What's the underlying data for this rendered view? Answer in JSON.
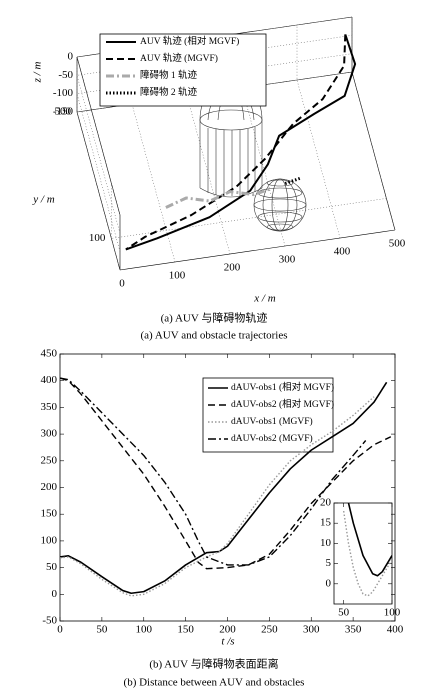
{
  "chart_data": [
    {
      "type": "line3d",
      "xlabel": "x / m",
      "ylabel": "y / m",
      "zlabel": "z / m",
      "caption": "(a) AUV 与障碍物轨迹",
      "caption_en": "(a) AUV and obstacle trajectories",
      "xlim": [
        0,
        500
      ],
      "ylim": [
        0,
        500
      ],
      "zlim": [
        -150,
        0
      ],
      "xticks": [
        0,
        100,
        200,
        300,
        400,
        500
      ],
      "yticks": [
        100,
        500
      ],
      "zticks": [
        0,
        -50,
        -100,
        -150
      ],
      "grid": true,
      "series": [
        {
          "name": "AUV 轨迹 (相对 MGVF)",
          "color": "#000000",
          "linestyle": "solid",
          "linewidth": 2,
          "x": [
            480,
            490,
            460,
            400,
            330,
            300,
            260,
            180,
            80,
            20
          ],
          "y": [
            450,
            400,
            330,
            300,
            260,
            200,
            150,
            110,
            80,
            60
          ],
          "z": [
            0,
            -40,
            -60,
            -70,
            -80,
            -100,
            -120,
            -140,
            -150,
            -150
          ]
        },
        {
          "name": "AUV 轨迹 (MGVF)",
          "color": "#000000",
          "linestyle": "dashed",
          "linewidth": 2,
          "x": [
            480,
            470,
            420,
            360,
            300,
            240,
            150,
            60,
            20
          ],
          "y": [
            450,
            400,
            330,
            290,
            230,
            180,
            130,
            90,
            60
          ],
          "z": [
            0,
            -40,
            -60,
            -80,
            -110,
            -130,
            -145,
            -150,
            -150
          ]
        },
        {
          "name": "障碍物 1 轨迹",
          "color": "#aaaaaa",
          "linestyle": "dashdot",
          "linewidth": 3,
          "x": [
            110,
            150,
            190,
            230,
            270,
            300
          ],
          "y": [
            170,
            190,
            170,
            190,
            170,
            180
          ],
          "z": [
            -150,
            -150,
            -150,
            -150,
            -150,
            -150
          ]
        },
        {
          "name": "障碍物 2 轨迹",
          "color": "#000000",
          "linestyle": "dotted",
          "linewidth": 3,
          "x": [
            330,
            360
          ],
          "y": [
            190,
            200
          ],
          "z": [
            -150,
            -150
          ]
        }
      ]
    },
    {
      "type": "line",
      "xlabel": "t /s",
      "caption": "(b) AUV 与障碍物表面距离",
      "caption_en": "(b) Distance between AUV and obstacles",
      "xlim": [
        0,
        400
      ],
      "ylim": [
        -50,
        450
      ],
      "xticks": [
        0,
        50,
        100,
        150,
        200,
        250,
        300,
        350,
        400
      ],
      "yticks": [
        -50,
        0,
        50,
        100,
        150,
        200,
        250,
        300,
        350,
        400,
        450
      ],
      "series": [
        {
          "name": "dAUV-obs1 (相对 MGVF)",
          "color": "#000000",
          "linestyle": "solid",
          "linewidth": 1.6,
          "x": [
            0,
            10,
            25,
            50,
            75,
            85,
            100,
            125,
            150,
            175,
            190,
            200,
            225,
            250,
            275,
            300,
            325,
            350,
            375,
            390
          ],
          "values": [
            70,
            72,
            60,
            33,
            7,
            2,
            5,
            25,
            55,
            78,
            80,
            90,
            140,
            190,
            235,
            270,
            295,
            320,
            360,
            397
          ]
        },
        {
          "name": "dAUV-obs2 (相对 MGVF)",
          "color": "#000000",
          "linestyle": "dashed",
          "linewidth": 1.4,
          "x": [
            0,
            10,
            25,
            50,
            75,
            100,
            125,
            150,
            165,
            175,
            200,
            225,
            250,
            275,
            300,
            325,
            350,
            375,
            395
          ],
          "values": [
            405,
            400,
            375,
            325,
            275,
            225,
            165,
            100,
            60,
            48,
            50,
            55,
            75,
            120,
            170,
            210,
            250,
            280,
            295
          ]
        },
        {
          "name": "dAUV-obs1 (MGVF)",
          "color": "#999999",
          "linestyle": "dotted",
          "linewidth": 1.4,
          "x": [
            0,
            10,
            25,
            50,
            75,
            85,
            100,
            125,
            150,
            175,
            190,
            200,
            225,
            250,
            275,
            300,
            325,
            350,
            375
          ],
          "values": [
            68,
            70,
            57,
            28,
            3,
            -3,
            0,
            20,
            50,
            70,
            80,
            95,
            150,
            205,
            250,
            280,
            305,
            335,
            370
          ]
        },
        {
          "name": "dAUV-obs2 (MGVF)",
          "color": "#000000",
          "linestyle": "dashdot",
          "linewidth": 1.4,
          "x": [
            0,
            10,
            25,
            50,
            75,
            100,
            125,
            150,
            165,
            175,
            200,
            225,
            250,
            275,
            300,
            325,
            350,
            365
          ],
          "values": [
            405,
            402,
            380,
            340,
            300,
            260,
            210,
            150,
            100,
            70,
            55,
            55,
            70,
            110,
            160,
            215,
            260,
            288
          ]
        }
      ]
    },
    {
      "type": "line",
      "xlim": [
        40,
        100
      ],
      "ylim": [
        -5,
        20
      ],
      "xticks": [
        50,
        100
      ],
      "yticks": [
        0,
        5,
        10,
        15,
        20
      ],
      "series": [
        {
          "color": "#000000",
          "linestyle": "solid",
          "linewidth": 1.6,
          "x": [
            55,
            60,
            70,
            80,
            85,
            90,
            100
          ],
          "values": [
            20,
            15,
            7,
            2.5,
            2,
            3,
            7
          ]
        },
        {
          "color": "#999999",
          "linestyle": "dotted",
          "linewidth": 1.4,
          "x": [
            50,
            55,
            60,
            65,
            70,
            75,
            80,
            90,
            100
          ],
          "values": [
            18,
            10,
            4,
            0,
            -2.5,
            -3,
            -2,
            2,
            6
          ]
        }
      ]
    }
  ]
}
